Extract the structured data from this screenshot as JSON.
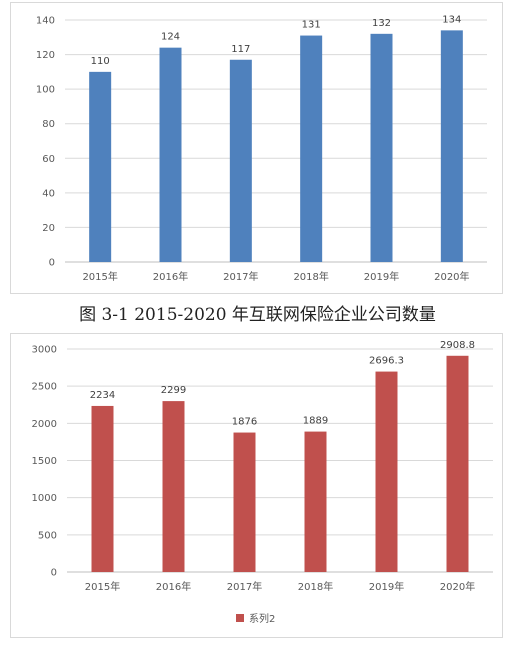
{
  "caption": "图 3-1 2015-2020 年互联网保险企业公司数量",
  "chart_data": [
    {
      "type": "bar",
      "categories": [
        "2015年",
        "2016年",
        "2017年",
        "2018年",
        "2019年",
        "2020年"
      ],
      "values": [
        110,
        124,
        117,
        131,
        132,
        134
      ],
      "data_labels": [
        "110",
        "124",
        "117",
        "131",
        "132",
        "134"
      ],
      "ylim": [
        0,
        140
      ],
      "yticks": [
        0,
        20,
        40,
        60,
        80,
        100,
        120,
        140
      ],
      "color": "#4f81bd",
      "grid": true,
      "legend": null
    },
    {
      "type": "bar",
      "categories": [
        "2015年",
        "2016年",
        "2017年",
        "2018年",
        "2019年",
        "2020年"
      ],
      "series": [
        {
          "name": "系列2",
          "values": [
            2234,
            2299,
            1876,
            1889,
            2696.3,
            2908.8
          ]
        }
      ],
      "data_labels": [
        "2234",
        "2299",
        "1876",
        "1889",
        "2696.3",
        "2908.8"
      ],
      "ylim": [
        0,
        3000
      ],
      "yticks": [
        0,
        500,
        1000,
        1500,
        2000,
        2500,
        3000
      ],
      "color": "#c0504d",
      "grid": true,
      "legend": "bottom"
    }
  ]
}
